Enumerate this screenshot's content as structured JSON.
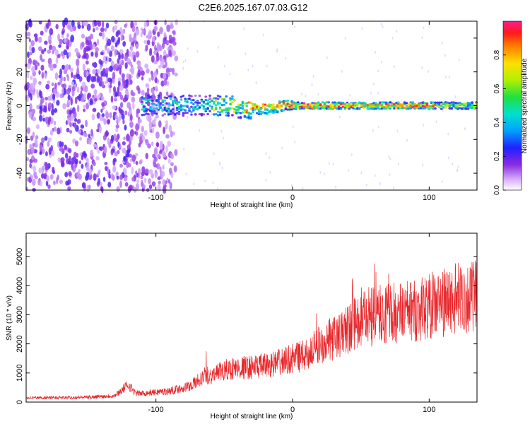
{
  "title": "C2E6.2025.167.07.03.G12",
  "chart_data": [
    {
      "type": "heatmap",
      "title": "C2E6.2025.167.07.03.G12",
      "xlabel": "Height of straight line (km)",
      "ylabel": "Frequency (Hz)",
      "xlim": [
        -195,
        135
      ],
      "ylim": [
        -50,
        50
      ],
      "x_ticks": [
        "-100",
        "0",
        "100"
      ],
      "y_ticks": [
        "-40",
        "-20",
        "0",
        "20",
        "40"
      ],
      "colorbar": {
        "label": "Normalized spectral amplitude",
        "range": [
          0,
          1
        ],
        "ticks": [
          "0.0",
          "0.2",
          "0.4",
          "0.6",
          "0.8"
        ]
      },
      "features": {
        "noise_region_x": [
          -195,
          -95
        ],
        "signal_band_center_hz": 0,
        "signal_start_x": -110,
        "strong_signal_x": [
          -35,
          105
        ]
      }
    },
    {
      "type": "line",
      "xlabel": "Height of straight line (km)",
      "ylabel": "SNR (10 * v/v)",
      "xlim": [
        -195,
        135
      ],
      "ylim": [
        0,
        5800
      ],
      "x_ticks": [
        "-100",
        "0",
        "100"
      ],
      "y_ticks": [
        "0",
        "1000",
        "2000",
        "3000",
        "4000",
        "5000"
      ],
      "color": "#e8262a",
      "series": [
        {
          "name": "SNR",
          "x": [
            -195,
            -170,
            -150,
            -130,
            -120,
            -115,
            -110,
            -90,
            -75,
            -63,
            -60,
            -45,
            -30,
            -20,
            -10,
            0,
            10,
            20,
            35,
            40,
            50,
            60,
            65,
            75,
            90,
            100,
            110,
            120,
            135
          ],
          "y": [
            150,
            150,
            170,
            220,
            600,
            300,
            300,
            380,
            550,
            950,
            900,
            1150,
            1200,
            1250,
            1350,
            1500,
            1600,
            2000,
            2300,
            2500,
            2800,
            2950,
            3000,
            3050,
            3150,
            3300,
            3400,
            3550,
            3650
          ]
        }
      ]
    }
  ]
}
